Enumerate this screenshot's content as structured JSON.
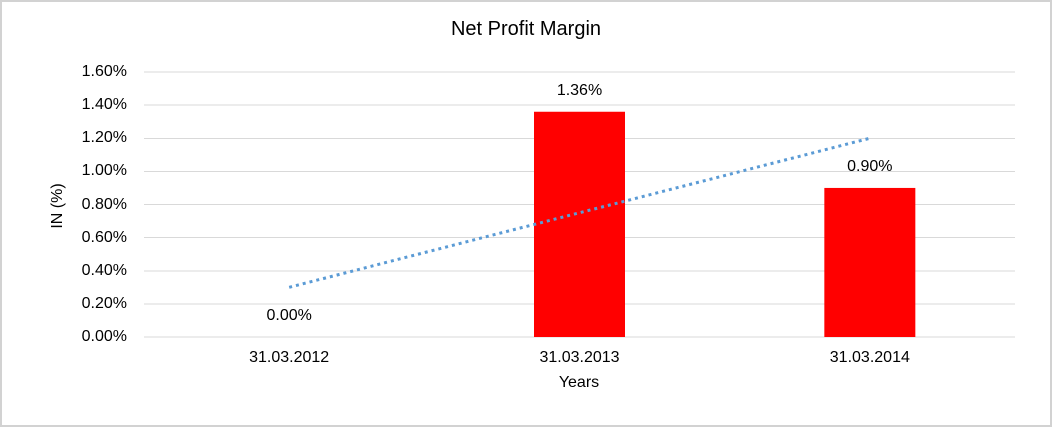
{
  "chart_data": {
    "type": "bar",
    "title": "Net Profit Margin",
    "xlabel": "Years",
    "ylabel": "IN (%)",
    "categories": [
      "31.03.2012",
      "31.03.2013",
      "31.03.2014"
    ],
    "values": [
      0.0,
      1.36,
      0.9
    ],
    "value_labels": [
      "0.00%",
      "1.36%",
      "0.90%"
    ],
    "ylim": [
      0,
      1.6
    ],
    "ytick_values": [
      0,
      0.2,
      0.4,
      0.6,
      0.8,
      1.0,
      1.2,
      1.4,
      1.6
    ],
    "ytick_labels": [
      "0.00%",
      "0.20%",
      "0.40%",
      "0.60%",
      "0.80%",
      "1.00%",
      "1.20%",
      "1.40%",
      "1.60%"
    ],
    "grid": "horizontal",
    "legend": "none",
    "bar_color": "#FF0000",
    "gridline_color": "#D9D9D9",
    "text_color": "#000000",
    "border_color": "#D2D2D2",
    "trendline": {
      "type": "linear",
      "style": "dotted",
      "color": "#5B9BD5",
      "start_value": 0.3,
      "end_value": 1.2
    }
  }
}
